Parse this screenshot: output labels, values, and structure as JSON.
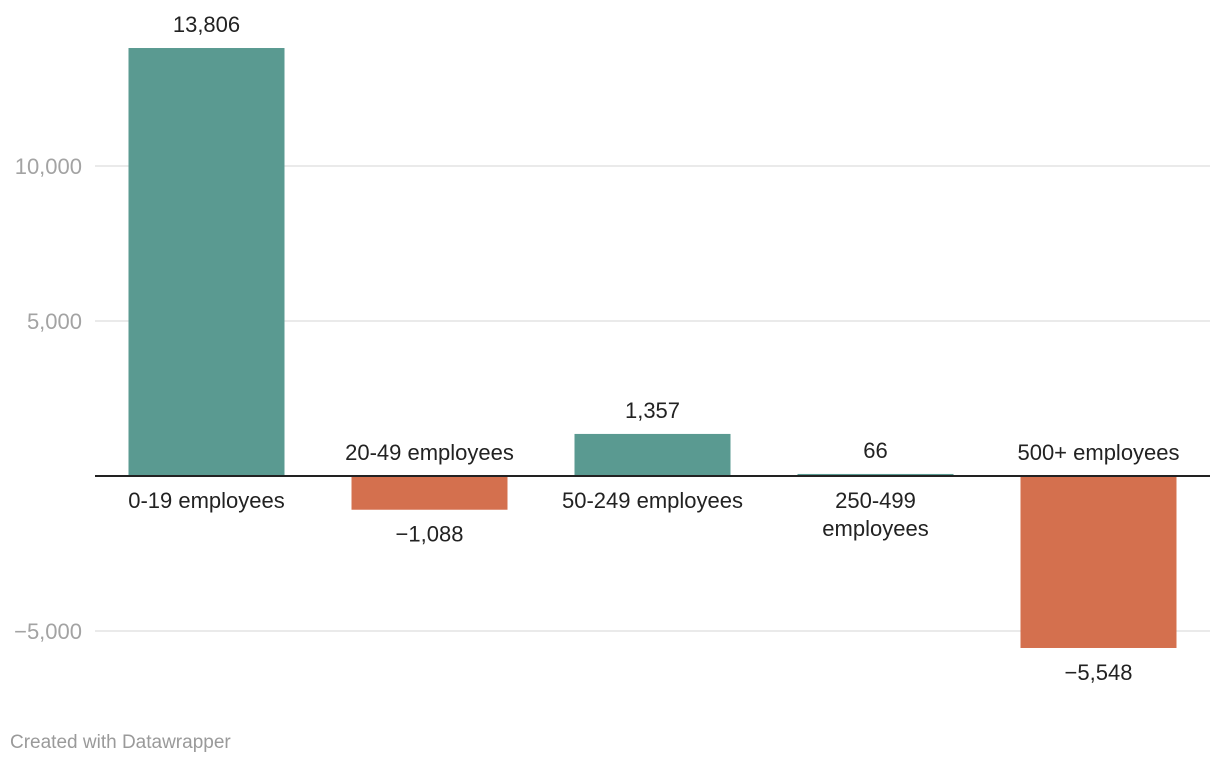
{
  "chart_data": {
    "type": "bar",
    "categories": [
      "0-19 employees",
      "20-49 employees",
      "50-249 employees",
      "250-499 employees",
      "500+ employees"
    ],
    "category_lines": [
      [
        "0-19 employees"
      ],
      [
        "20-49 employees"
      ],
      [
        "50-249 employees"
      ],
      [
        "250-499",
        "employees"
      ],
      [
        "500+ employees"
      ]
    ],
    "values": [
      13806,
      -1088,
      1357,
      66,
      -5548
    ],
    "value_labels": [
      "13,806",
      "−1,088",
      "1,357",
      "66",
      "−5,548"
    ],
    "yticks": [
      {
        "value": 10000,
        "label": "10,000"
      },
      {
        "value": 5000,
        "label": "5,000"
      },
      {
        "value": -5000,
        "label": "−5,000"
      }
    ],
    "ylim": [
      -6500,
      14500
    ],
    "colors": {
      "positive": "#5a9a91",
      "negative": "#d4704e"
    },
    "grid": true
  },
  "footer": {
    "credit": "Created with Datawrapper"
  }
}
